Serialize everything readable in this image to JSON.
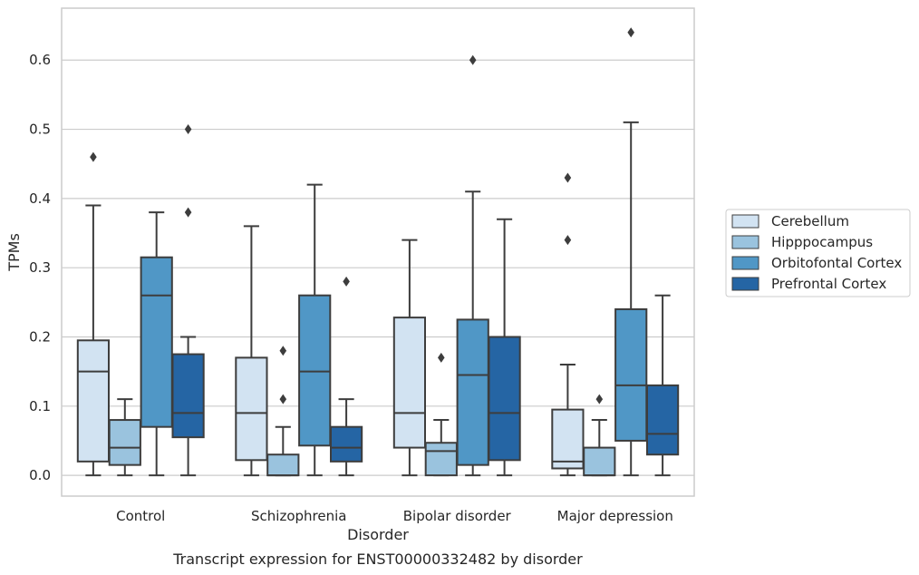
{
  "chart_data": {
    "type": "box",
    "title": "",
    "caption": "Transcript expression for ENST00000332482 by disorder",
    "xlabel": "Disorder",
    "ylabel": "TPMs",
    "ylim": [
      -0.03,
      0.675
    ],
    "yticks": [
      "0.0",
      "0.1",
      "0.2",
      "0.3",
      "0.4",
      "0.5",
      "0.6"
    ],
    "grid": true,
    "legend_position": "right",
    "categories": [
      "Control",
      "Schizophrenia",
      "Bipolar disorder",
      "Major depression"
    ],
    "series": [
      {
        "name": "Cerebellum",
        "color": "#d2e3f2",
        "boxes": [
          {
            "whislo": 0.0,
            "q1": 0.02,
            "med": 0.15,
            "q3": 0.195,
            "whishi": 0.39,
            "fliers": [
              0.46
            ]
          },
          {
            "whislo": 0.0,
            "q1": 0.022,
            "med": 0.09,
            "q3": 0.17,
            "whishi": 0.36,
            "fliers": []
          },
          {
            "whislo": 0.0,
            "q1": 0.04,
            "med": 0.09,
            "q3": 0.228,
            "whishi": 0.34,
            "fliers": []
          },
          {
            "whislo": 0.0,
            "q1": 0.01,
            "med": 0.02,
            "q3": 0.095,
            "whishi": 0.16,
            "fliers": [
              0.34,
              0.43
            ]
          }
        ]
      },
      {
        "name": "Hipppocampus",
        "color": "#9ac3de",
        "boxes": [
          {
            "whislo": 0.0,
            "q1": 0.015,
            "med": 0.04,
            "q3": 0.08,
            "whishi": 0.11,
            "fliers": []
          },
          {
            "whislo": 0.0,
            "q1": 0.0,
            "med": 0.0,
            "q3": 0.03,
            "whishi": 0.07,
            "fliers": [
              0.11,
              0.18
            ]
          },
          {
            "whislo": 0.0,
            "q1": 0.0,
            "med": 0.035,
            "q3": 0.047,
            "whishi": 0.08,
            "fliers": [
              0.17
            ]
          },
          {
            "whislo": 0.0,
            "q1": 0.0,
            "med": 0.0,
            "q3": 0.04,
            "whishi": 0.08,
            "fliers": [
              0.11
            ]
          }
        ]
      },
      {
        "name": "Orbitofontal Cortex",
        "color": "#5097c6",
        "boxes": [
          {
            "whislo": 0.0,
            "q1": 0.07,
            "med": 0.26,
            "q3": 0.315,
            "whishi": 0.38,
            "fliers": []
          },
          {
            "whislo": 0.0,
            "q1": 0.043,
            "med": 0.15,
            "q3": 0.26,
            "whishi": 0.42,
            "fliers": []
          },
          {
            "whislo": 0.0,
            "q1": 0.015,
            "med": 0.145,
            "q3": 0.225,
            "whishi": 0.41,
            "fliers": [
              0.6
            ]
          },
          {
            "whislo": 0.0,
            "q1": 0.05,
            "med": 0.13,
            "q3": 0.24,
            "whishi": 0.51,
            "fliers": [
              0.64
            ]
          }
        ]
      },
      {
        "name": "Prefrontal Cortex",
        "color": "#2565a4",
        "boxes": [
          {
            "whislo": 0.0,
            "q1": 0.055,
            "med": 0.09,
            "q3": 0.175,
            "whishi": 0.2,
            "fliers": [
              0.38,
              0.5
            ]
          },
          {
            "whislo": 0.0,
            "q1": 0.02,
            "med": 0.04,
            "q3": 0.07,
            "whishi": 0.11,
            "fliers": [
              0.28
            ]
          },
          {
            "whislo": 0.0,
            "q1": 0.022,
            "med": 0.09,
            "q3": 0.2,
            "whishi": 0.37,
            "fliers": []
          },
          {
            "whislo": 0.0,
            "q1": 0.03,
            "med": 0.06,
            "q3": 0.13,
            "whishi": 0.26,
            "fliers": []
          }
        ]
      }
    ]
  }
}
